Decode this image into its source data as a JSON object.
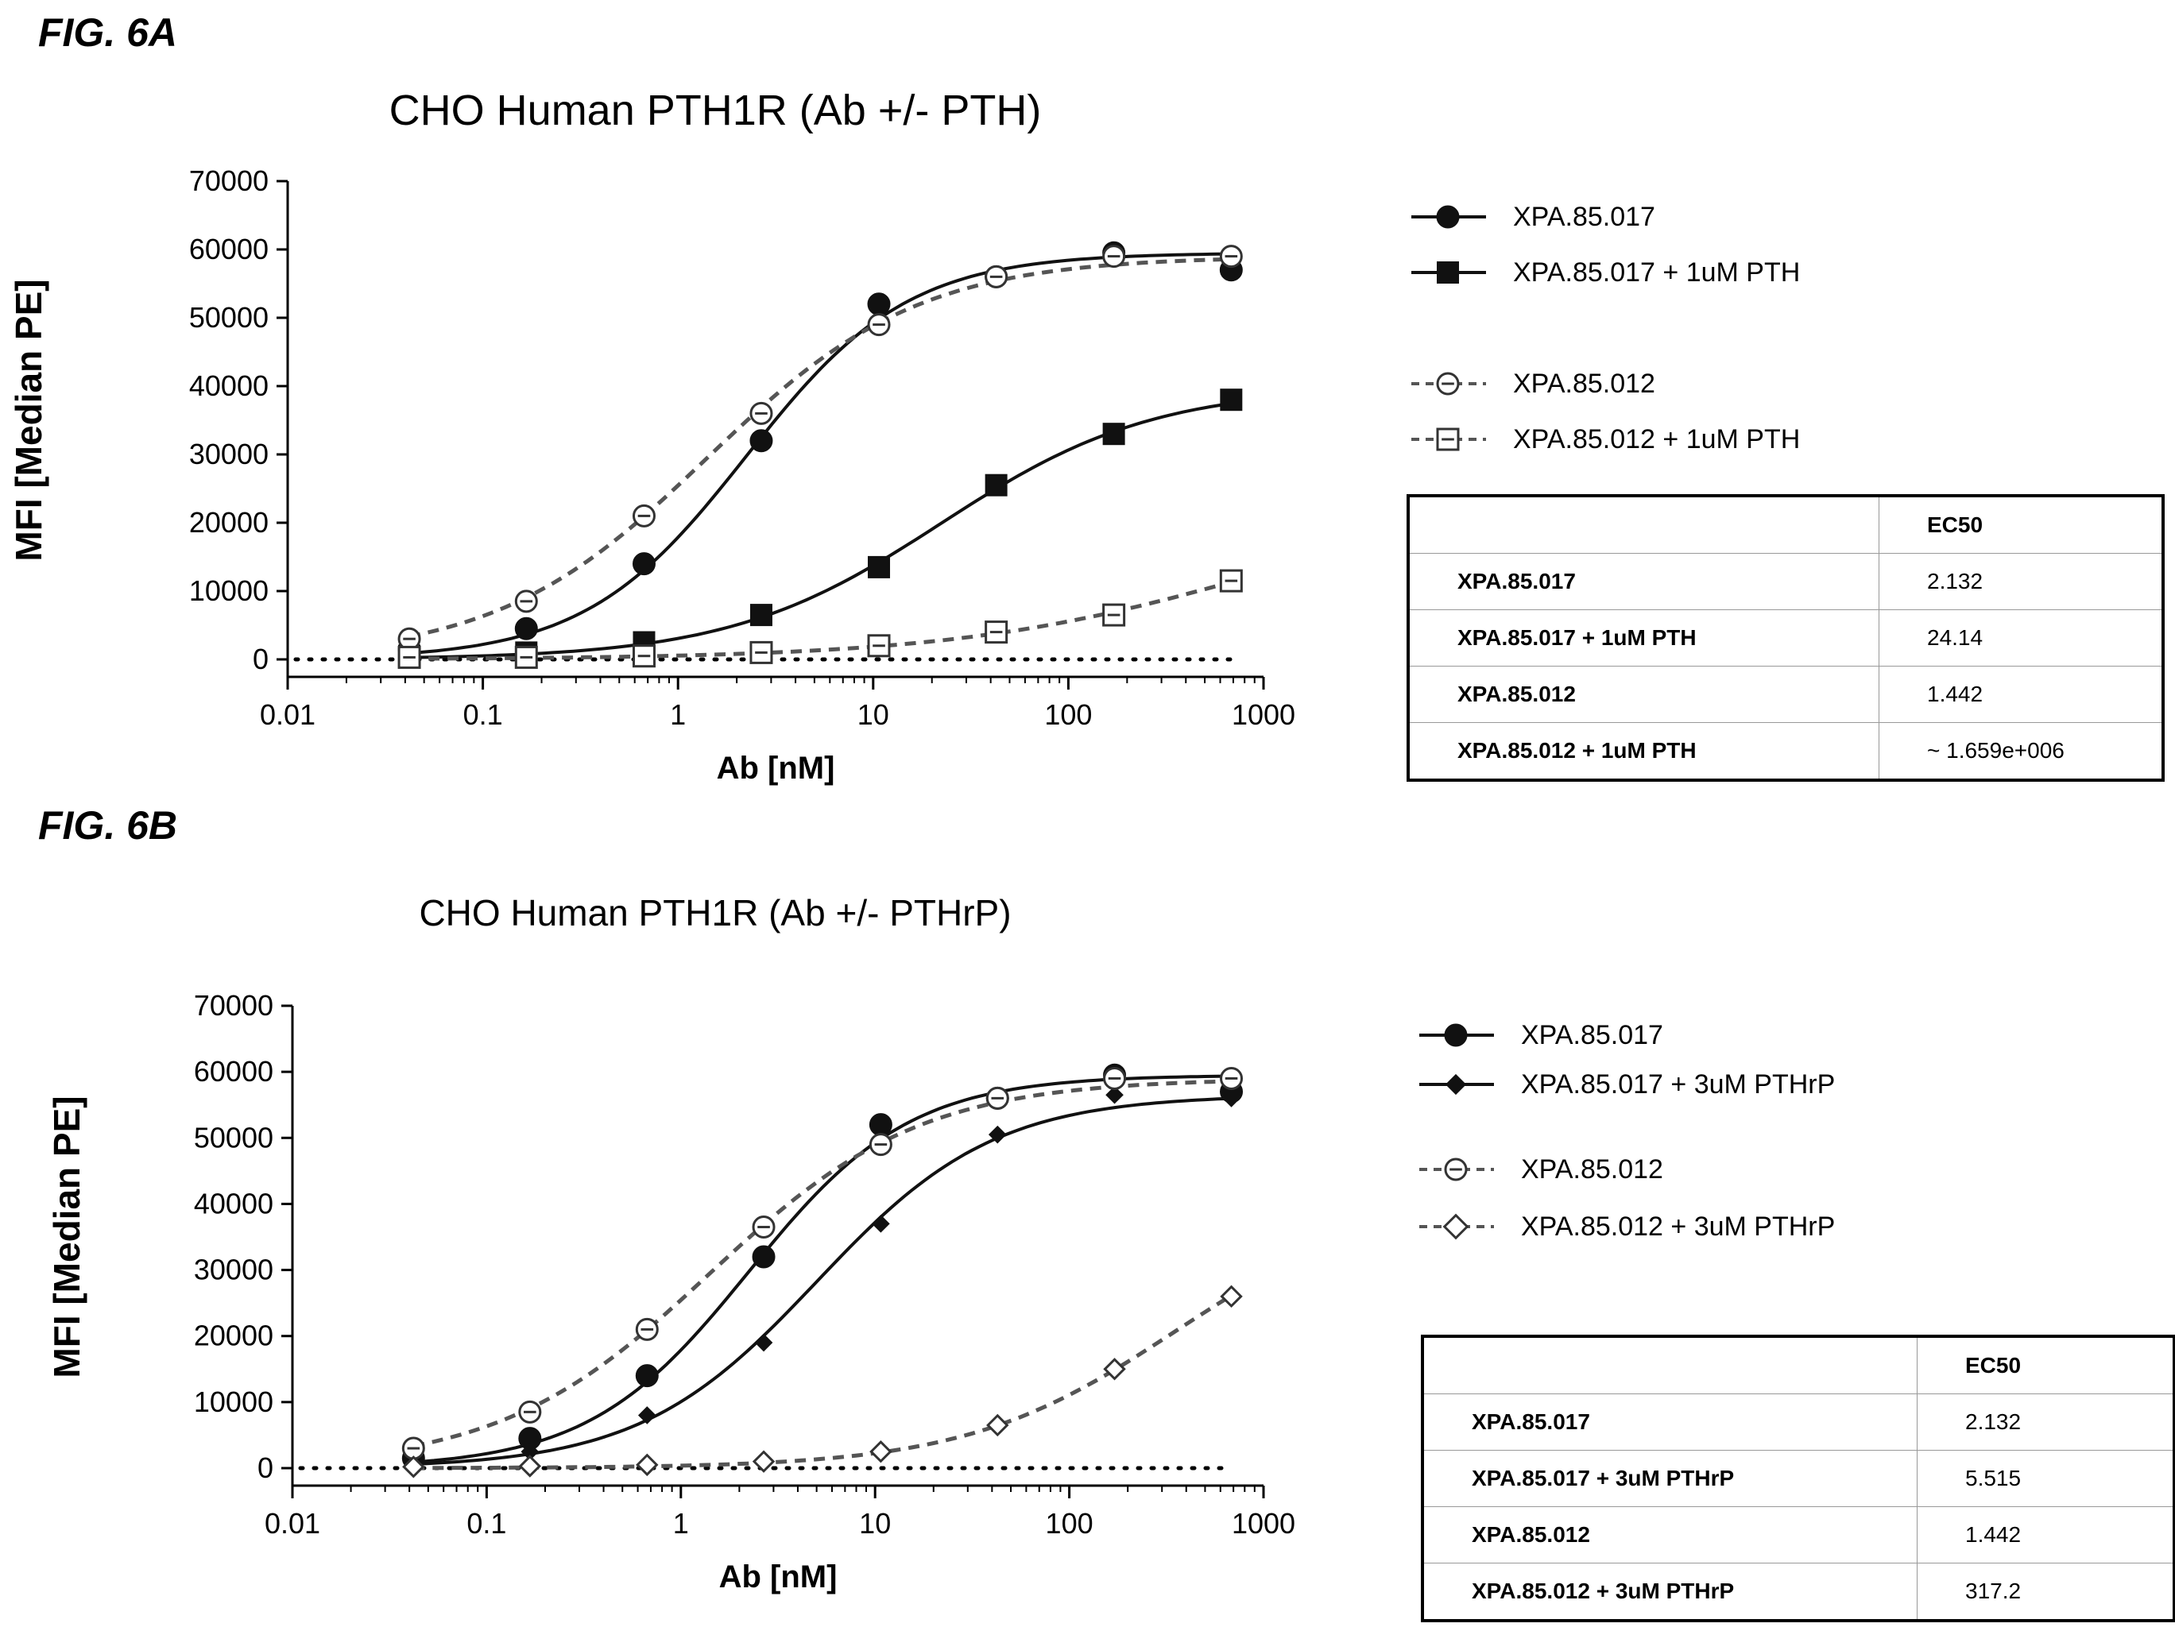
{
  "figures": [
    {
      "id": "A",
      "label": "FIG. 6A",
      "title": "CHO  Human  PTH1R (Ab +/- PTH)",
      "legend": [
        {
          "text": "XPA.85.017",
          "marker": "circle-filled",
          "line": "solid"
        },
        {
          "text": "XPA.85.017 + 1uM PTH",
          "marker": "square-filled",
          "line": "solid"
        },
        {
          "text": "XPA.85.012",
          "marker": "circle-open",
          "line": "dashed"
        },
        {
          "text": "XPA.85.012 + 1uM PTH",
          "marker": "square-open",
          "line": "dashed"
        }
      ],
      "table": {
        "header": [
          "",
          "EC50"
        ],
        "rows": [
          [
            "XPA.85.017",
            "2.132"
          ],
          [
            "XPA.85.017 + 1uM PTH",
            "24.14"
          ],
          [
            "XPA.85.012",
            "1.442"
          ],
          [
            "XPA.85.012 + 1uM PTH",
            "~ 1.659e+006"
          ]
        ]
      }
    },
    {
      "id": "B",
      "label": "FIG. 6B",
      "title": "CHO  Human  PTH1R (Ab +/- PTHrP)",
      "legend": [
        {
          "text": "XPA.85.017",
          "marker": "circle-filled",
          "line": "solid"
        },
        {
          "text": "XPA.85.017 + 3uM PTHrP",
          "marker": "diamond-filled",
          "line": "solid"
        },
        {
          "text": "XPA.85.012",
          "marker": "circle-open",
          "line": "dashed"
        },
        {
          "text": "XPA.85.012 + 3uM PTHrP",
          "marker": "diamond-open",
          "line": "dashed"
        }
      ],
      "table": {
        "header": [
          "",
          "EC50"
        ],
        "rows": [
          [
            "XPA.85.017",
            "2.132"
          ],
          [
            "XPA.85.017 + 3uM PTHrP",
            "5.515"
          ],
          [
            "XPA.85.012",
            "1.442"
          ],
          [
            "XPA.85.012 + 3uM PTHrP",
            "317.2"
          ]
        ]
      }
    }
  ],
  "chart_data": [
    {
      "type": "line",
      "title": "CHO  Human  PTH1R (Ab +/- PTH)",
      "xlabel": "Ab [nM]",
      "ylabel": "MFI [Median PE]",
      "xscale": "log",
      "xlim": [
        0.01,
        1000
      ],
      "ylim": [
        0,
        70000
      ],
      "xticks": [
        "0.01",
        "0.1",
        "1",
        "10",
        "100",
        "1000"
      ],
      "yticks": [
        "0",
        "10000",
        "20000",
        "30000",
        "40000",
        "50000",
        "60000",
        "70000"
      ],
      "baseline": "dotted line at 0",
      "legend_position": "right",
      "x": [
        0.042,
        0.167,
        0.67,
        2.67,
        10.7,
        42.7,
        171,
        683
      ],
      "series": [
        {
          "name": "XPA.85.017",
          "values": [
            1500,
            4500,
            14000,
            32000,
            52000,
            56000,
            59500,
            57000
          ],
          "ec50": 2.132,
          "marker": "circle-filled",
          "line": "solid"
        },
        {
          "name": "XPA.85.017 + 1uM PTH",
          "values": [
            500,
            1000,
            2500,
            6500,
            13500,
            25500,
            33000,
            38000
          ],
          "ec50": 24.14,
          "marker": "square-filled",
          "line": "solid"
        },
        {
          "name": "XPA.85.012",
          "values": [
            3000,
            8500,
            21000,
            36000,
            49000,
            56000,
            59000,
            59000
          ],
          "ec50": 1.442,
          "marker": "circle-open",
          "line": "dashed"
        },
        {
          "name": "XPA.85.012 + 1uM PTH",
          "values": [
            300,
            300,
            500,
            1000,
            2000,
            4000,
            6500,
            11500
          ],
          "marker": "square-open",
          "line": "dashed"
        }
      ]
    },
    {
      "type": "line",
      "title": "CHO  Human  PTH1R (Ab +/- PTHrP)",
      "xlabel": "Ab [nM]",
      "ylabel": "MFI [Median PE]",
      "xscale": "log",
      "xlim": [
        0.01,
        1000
      ],
      "ylim": [
        0,
        70000
      ],
      "xticks": [
        "0.01",
        "0.1",
        "1",
        "10",
        "100",
        "1000"
      ],
      "yticks": [
        "0",
        "10000",
        "20000",
        "30000",
        "40000",
        "50000",
        "60000",
        "70000"
      ],
      "baseline": "dotted line at 0",
      "legend_position": "right",
      "x": [
        0.042,
        0.167,
        0.67,
        2.67,
        10.7,
        42.7,
        171,
        683
      ],
      "series": [
        {
          "name": "XPA.85.017",
          "values": [
            1500,
            4500,
            14000,
            32000,
            52000,
            56000,
            59500,
            57000
          ],
          "ec50": 2.132,
          "marker": "circle-filled",
          "line": "solid"
        },
        {
          "name": "XPA.85.017 + 3uM PTHrP",
          "values": [
            1000,
            2500,
            8000,
            19000,
            37000,
            50500,
            56500,
            56000
          ],
          "ec50": 5.515,
          "marker": "diamond-filled",
          "line": "solid"
        },
        {
          "name": "XPA.85.012",
          "values": [
            3000,
            8500,
            21000,
            36500,
            49000,
            56000,
            59000,
            59000
          ],
          "ec50": 1.442,
          "marker": "circle-open",
          "line": "dashed"
        },
        {
          "name": "XPA.85.012 + 3uM PTHrP",
          "values": [
            200,
            300,
            500,
            1000,
            2500,
            6500,
            15000,
            26000
          ],
          "ec50": 317.2,
          "marker": "diamond-open",
          "line": "dashed"
        }
      ]
    }
  ]
}
